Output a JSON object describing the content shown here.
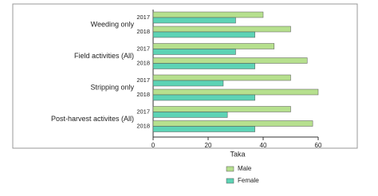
{
  "chart_data": {
    "type": "grouped-hbar",
    "groups": [
      "Weeding only",
      "Field activities (All)",
      "Stripping only",
      "Post-harvest activites (All)"
    ],
    "categories": [
      "2017",
      "2018",
      "2017",
      "2018",
      "2017",
      "2018",
      "2017",
      "2018"
    ],
    "series": [
      {
        "name": "Male",
        "color": "#b6e08e",
        "values": [
          40,
          50,
          44,
          56,
          50,
          60,
          50,
          58
        ]
      },
      {
        "name": "Female",
        "color": "#5dd3b5",
        "values": [
          30,
          37,
          30,
          37,
          25.5,
          37,
          27,
          37
        ]
      }
    ],
    "xlabel": "Taka",
    "xlim": [
      0,
      60
    ],
    "xticks": [
      0,
      20,
      40,
      60
    ]
  }
}
